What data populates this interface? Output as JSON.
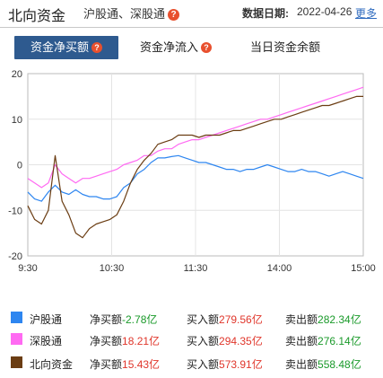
{
  "header": {
    "title": "北向资金",
    "subtitle": "沪股通、深股通",
    "date_label": "数据日期:",
    "date_value": "2022-04-26",
    "more_label": "更多"
  },
  "tabs": [
    {
      "label": "资金净买额",
      "active": true,
      "help": true
    },
    {
      "label": "资金净流入",
      "active": false,
      "help": true
    },
    {
      "label": "当日资金余额",
      "active": false,
      "help": false
    }
  ],
  "colors": {
    "hgt": "#2e86f0",
    "sgt": "#ff6af2",
    "north": "#6b3d13",
    "accent": "#2e5a8f",
    "positive": "#e0362b",
    "negative": "#1a9a2a"
  },
  "chart_data": {
    "type": "line",
    "x_ticks": [
      "9:30",
      "10:30",
      "11:30",
      "14:00",
      "15:00"
    ],
    "ylim": [
      -20,
      20
    ],
    "y_ticks": [
      20,
      10,
      0,
      -10,
      -20
    ],
    "grid": true,
    "series": [
      {
        "name": "沪股通",
        "color_key": "hgt",
        "values": [
          -6,
          -7.5,
          -8,
          -6,
          -4.5,
          -6,
          -6.5,
          -5.5,
          -6.5,
          -7,
          -7,
          -7.5,
          -7.5,
          -7,
          -5,
          -4,
          -2,
          -1,
          0.5,
          1.5,
          1.5,
          1.8,
          2,
          1.5,
          1,
          0.5,
          0.5,
          0,
          -0.5,
          -1,
          -1,
          -1.5,
          -1,
          -1,
          -0.5,
          0,
          -0.5,
          -1,
          -1.5,
          -1.5,
          -1,
          -1.5,
          -1.5,
          -2,
          -2.5,
          -2,
          -1.5,
          -2,
          -2.5,
          -3
        ]
      },
      {
        "name": "深股通",
        "color_key": "sgt",
        "values": [
          -3,
          -4,
          -5,
          -4,
          0,
          -2,
          -3,
          -4,
          -3,
          -3,
          -2.5,
          -2,
          -1.5,
          -1,
          0,
          0.5,
          1,
          2,
          2,
          3,
          3.5,
          3.5,
          4.5,
          5,
          5.5,
          5.5,
          6,
          6.5,
          7,
          7.5,
          8,
          8.5,
          9,
          9.5,
          10,
          10,
          10.5,
          11,
          11.5,
          12,
          12.5,
          13,
          13.5,
          14,
          14.5,
          15,
          15.5,
          16,
          16.5,
          17
        ]
      },
      {
        "name": "北向资金",
        "color_key": "north",
        "values": [
          -9,
          -12,
          -13,
          -10,
          2,
          -8,
          -11,
          -15,
          -16,
          -14,
          -13,
          -12.5,
          -12,
          -11,
          -8,
          -4,
          -1,
          1,
          2.5,
          4.5,
          5,
          5.5,
          6.5,
          6.5,
          6.5,
          6,
          6.5,
          6.5,
          6.5,
          7,
          7.5,
          7.5,
          8,
          8.5,
          9,
          9.5,
          10,
          10,
          10.5,
          11,
          11.5,
          12,
          12.5,
          13,
          13,
          13.5,
          14,
          14.5,
          15,
          15
        ]
      }
    ]
  },
  "legend": [
    {
      "name": "沪股通",
      "color_key": "hgt",
      "net_label": "净买额",
      "net_value": "-2.78亿",
      "buy_label": "买入额",
      "buy_value": "279.56亿",
      "sell_label": "卖出额",
      "sell_value": "282.34亿"
    },
    {
      "name": "深股通",
      "color_key": "sgt",
      "net_label": "净买额",
      "net_value": "18.21亿",
      "buy_label": "买入额",
      "buy_value": "294.35亿",
      "sell_label": "卖出额",
      "sell_value": "276.14亿"
    },
    {
      "name": "北向资金",
      "color_key": "north",
      "net_label": "净买额",
      "net_value": "15.43亿",
      "buy_label": "买入额",
      "buy_value": "573.91亿",
      "sell_label": "卖出额",
      "sell_value": "558.48亿"
    }
  ]
}
